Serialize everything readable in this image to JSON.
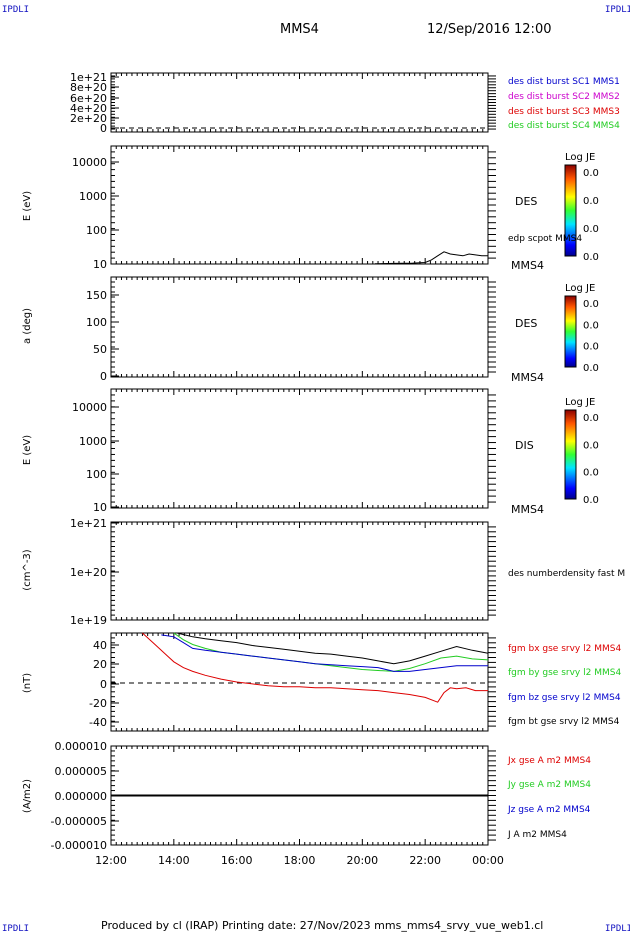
{
  "corner_label": "IPDLI",
  "header": {
    "spacecraft": "MMS4",
    "datetime": "12/Sep/2016 12:00"
  },
  "footer": {
    "text": "Produced by cl (IRAP)   Printing date: 27/Nov/2023   mms_mms4_srvy_vue_web1.cl"
  },
  "colors": {
    "red": "#dd0000",
    "green": "#22cc22",
    "blue": "#0000cc",
    "magenta": "#cc00cc",
    "black": "#000000"
  },
  "chart_data": [
    {
      "id": "p1",
      "type": "line",
      "y_ticks": [
        "1e+21",
        "8e+20",
        "6e+20",
        "4e+20",
        "2e+20",
        "0"
      ],
      "ylim": [
        0,
        1.1e+21
      ],
      "legend": [
        {
          "text": "des dist burst SC1 MMS1",
          "color": "#0000cc"
        },
        {
          "text": "des dist burst SC2 MMS2",
          "color": "#cc00cc"
        },
        {
          "text": "des dist burst SC3 MMS3",
          "color": "#dd0000"
        },
        {
          "text": "des dist burst SC4 MMS4",
          "color": "#22cc22"
        }
      ],
      "dashed_zero": true
    },
    {
      "id": "p2",
      "type": "heatmap",
      "ylabel": "E (eV)",
      "scale": "log",
      "y_ticks": [
        "10000",
        "1000",
        "100",
        "10"
      ],
      "ylim": [
        10,
        20000
      ],
      "instrument": "DES",
      "spacecraft_label": "MMS4",
      "overlay_label": "edp scpot MMS4",
      "colorbar": {
        "title": "Log JE",
        "ticks": [
          "0.0",
          "0.0",
          "0.0",
          "0.0"
        ]
      },
      "scpot_series": {
        "x": [
          20.4,
          21.0,
          21.6,
          22.0,
          22.2,
          22.4,
          22.6,
          22.8,
          23.0,
          23.2,
          23.4,
          23.6,
          23.8,
          24.0
        ],
        "y": [
          10.2,
          10.4,
          10.6,
          11,
          13,
          17,
          22,
          19,
          18,
          17,
          19,
          18,
          17,
          17
        ]
      }
    },
    {
      "id": "p3",
      "type": "heatmap",
      "ylabel": "a (deg)",
      "y_ticks": [
        "150",
        "100",
        "50",
        "0"
      ],
      "ylim": [
        0,
        190
      ],
      "instrument": "DES",
      "spacecraft_label": "MMS4",
      "colorbar": {
        "title": "Log JE",
        "ticks": [
          "0.0",
          "0.0",
          "0.0",
          "0.0"
        ]
      }
    },
    {
      "id": "p4",
      "type": "heatmap",
      "ylabel": "E (eV)",
      "scale": "log",
      "y_ticks": [
        "10000",
        "1000",
        "100",
        "10"
      ],
      "ylim": [
        10,
        20000
      ],
      "instrument": "DIS",
      "spacecraft_label": "MMS4",
      "colorbar": {
        "title": "Log JE",
        "ticks": [
          "0.0",
          "0.0",
          "0.0",
          "0.0"
        ]
      }
    },
    {
      "id": "p5",
      "type": "line",
      "ylabel": "(cm^-3)",
      "scale": "log",
      "y_ticks": [
        "1e+21",
        "1e+20",
        "1e+19"
      ],
      "ylim": [
        1e+19,
        1e+21
      ],
      "legend": [
        {
          "text": "des numberdensity fast M",
          "color": "#000000"
        }
      ]
    },
    {
      "id": "p6",
      "type": "line",
      "ylabel": "(nT)",
      "y_ticks": [
        "40",
        "20",
        "0",
        "-20",
        "-40"
      ],
      "ylim": [
        -50,
        52
      ],
      "dashed_zero": true,
      "legend": [
        {
          "text": "fgm bx gse srvy l2 MMS4",
          "color": "#dd0000"
        },
        {
          "text": "fgm by gse srvy l2 MMS4",
          "color": "#22cc22"
        },
        {
          "text": "fgm bz gse srvy l2 MMS4",
          "color": "#0000cc"
        },
        {
          "text": "fgm bt gse srvy l2 MMS4",
          "color": "#000000"
        }
      ],
      "series": [
        {
          "name": "fgm bx gse srvy l2 MMS4",
          "color": "#dd0000",
          "x": [
            13.0,
            13.4,
            13.8,
            14.0,
            14.3,
            14.6,
            15.0,
            15.5,
            16.0,
            16.5,
            17.0,
            17.5,
            18.0,
            18.5,
            19.0,
            19.5,
            20.0,
            20.5,
            21.0,
            21.5,
            22.0,
            22.4,
            22.6,
            22.8,
            23.0,
            23.3,
            23.6,
            24.0
          ],
          "y": [
            52,
            40,
            28,
            22,
            16,
            12,
            8,
            4,
            1,
            -1,
            -3,
            -4,
            -4,
            -5,
            -5,
            -6,
            -7,
            -8,
            -10,
            -12,
            -15,
            -20,
            -10,
            -5,
            -6,
            -5,
            -8,
            -8
          ]
        },
        {
          "name": "fgm by gse srvy l2 MMS4",
          "color": "#22cc22",
          "x": [
            14.0,
            14.3,
            14.6,
            15.0,
            15.5,
            16.0,
            16.5,
            17.0,
            17.5,
            18.0,
            18.5,
            19.0,
            19.5,
            20.0,
            20.5,
            21.0,
            21.5,
            22.0,
            22.5,
            23.0,
            23.5,
            24.0
          ],
          "y": [
            52,
            45,
            40,
            36,
            32,
            30,
            28,
            26,
            24,
            22,
            20,
            18,
            16,
            14,
            13,
            12,
            15,
            20,
            26,
            28,
            25,
            24
          ]
        },
        {
          "name": "fgm bz gse srvy l2 MMS4",
          "color": "#0000cc",
          "x": [
            13.6,
            14.0,
            14.3,
            14.6,
            15.0,
            15.5,
            16.0,
            16.5,
            17.0,
            17.5,
            18.0,
            18.5,
            19.0,
            19.5,
            20.0,
            20.5,
            21.0,
            21.5,
            22.0,
            22.5,
            23.0,
            23.5,
            24.0
          ],
          "y": [
            50,
            48,
            42,
            36,
            34,
            32,
            30,
            28,
            26,
            24,
            22,
            20,
            19,
            18,
            17,
            16,
            12,
            12,
            14,
            16,
            18,
            18,
            18
          ]
        },
        {
          "name": "fgm bt gse srvy l2 MMS4",
          "color": "#000000",
          "x": [
            14.1,
            14.6,
            15.0,
            15.5,
            16.0,
            16.5,
            17.0,
            17.5,
            18.0,
            18.5,
            19.0,
            19.5,
            20.0,
            20.5,
            21.0,
            21.5,
            22.0,
            22.5,
            23.0,
            23.5,
            24.0
          ],
          "y": [
            52,
            48,
            46,
            44,
            42,
            39,
            37,
            35,
            33,
            31,
            30,
            28,
            26,
            23,
            20,
            23,
            28,
            33,
            38,
            34,
            31
          ]
        }
      ]
    },
    {
      "id": "p7",
      "type": "line",
      "ylabel": "(A/m2)",
      "y_ticks": [
        "0.000010",
        "0.000005",
        "0.000000",
        "-0.000005",
        "-0.000010"
      ],
      "ylim": [
        -1e-05,
        1e-05
      ],
      "x_ticks": [
        "12:00",
        "14:00",
        "16:00",
        "18:00",
        "20:00",
        "22:00",
        "00:00"
      ],
      "xlim": [
        12,
        24
      ],
      "legend": [
        {
          "text": "Jx gse A m2 MMS4",
          "color": "#dd0000"
        },
        {
          "text": "Jy gse A m2 MMS4",
          "color": "#22cc22"
        },
        {
          "text": "Jz gse A m2 MMS4",
          "color": "#0000cc"
        },
        {
          "text": "J A m2 MMS4",
          "color": "#000000"
        }
      ],
      "series": [
        {
          "color": "#0000cc",
          "x": [
            12,
            24
          ],
          "y": [
            0,
            0
          ]
        },
        {
          "color": "#000000",
          "x": [
            12,
            24
          ],
          "y": [
            0,
            0
          ]
        }
      ]
    }
  ]
}
